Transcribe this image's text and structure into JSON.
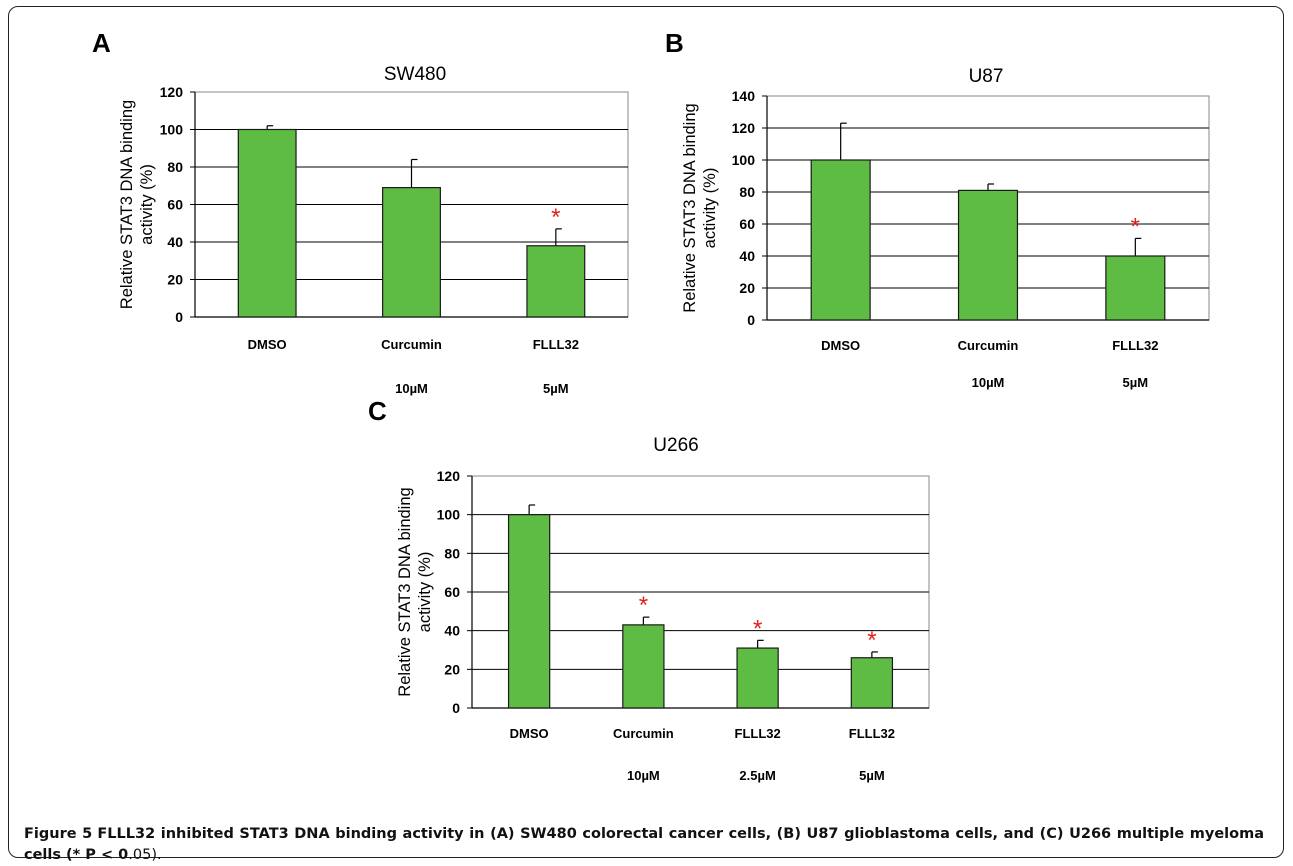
{
  "chart_data": [
    {
      "type": "bar",
      "panel": "A",
      "title": "SW480",
      "ylabel_line1": "Relative STAT3 DNA binding",
      "ylabel_line2": "activity (%)",
      "ylim": [
        0,
        120
      ],
      "yticks": [
        0,
        20,
        40,
        60,
        80,
        100,
        120
      ],
      "categories": [
        "DMSO",
        "Curcumin",
        "FLLL32"
      ],
      "doses": [
        "",
        "10µM",
        "5µM"
      ],
      "values": [
        100,
        69,
        38
      ],
      "errors": [
        2,
        15,
        9
      ],
      "significant": [
        false,
        false,
        true
      ],
      "grid": true,
      "bar_color": "#5ebc44"
    },
    {
      "type": "bar",
      "panel": "B",
      "title": "U87",
      "ylabel_line1": "Relative STAT3 DNA binding",
      "ylabel_line2": "activity (%)",
      "ylim": [
        0,
        140
      ],
      "yticks": [
        0,
        20,
        40,
        60,
        80,
        100,
        120,
        140
      ],
      "categories": [
        "DMSO",
        "Curcumin",
        "FLLL32"
      ],
      "doses": [
        "",
        "10µM",
        "5µM"
      ],
      "values": [
        100,
        81,
        40
      ],
      "errors": [
        23,
        4,
        11
      ],
      "significant": [
        false,
        false,
        true
      ],
      "grid": true,
      "bar_color": "#5ebc44"
    },
    {
      "type": "bar",
      "panel": "C",
      "title": "U266",
      "ylabel_line1": "Relative STAT3 DNA binding",
      "ylabel_line2": "activity (%)",
      "ylim": [
        0,
        120
      ],
      "yticks": [
        0,
        20,
        40,
        60,
        80,
        100,
        120
      ],
      "categories": [
        "DMSO",
        "Curcumin",
        "FLLL32",
        "FLLL32"
      ],
      "doses": [
        "",
        "10µM",
        "2.5µM",
        "5µM"
      ],
      "values": [
        100,
        43,
        31,
        26
      ],
      "errors": [
        5,
        4,
        4,
        3
      ],
      "significant": [
        false,
        true,
        true,
        true
      ],
      "grid": true,
      "bar_color": "#5ebc44"
    }
  ],
  "significance_marker": "*",
  "marker_color": "#e02020",
  "caption": {
    "figure_label": "Figure 5",
    "text": "FLLL32 inhibited STAT3 DNA binding activity in (A) SW480 colorectal cancer cells, (B) U87 glioblastoma cells, and (C) U266 multiple myeloma cells (* P < 0",
    "tail": ".05)."
  }
}
